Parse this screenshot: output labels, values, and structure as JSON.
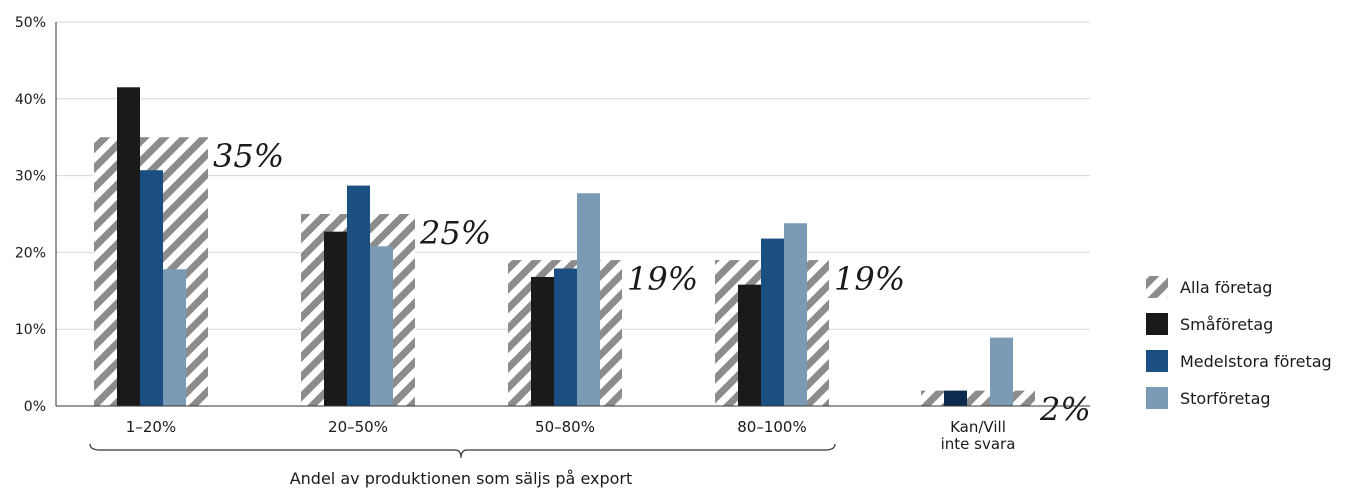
{
  "chart_data": {
    "type": "bar",
    "categories": [
      "1–20%",
      "20–50%",
      "50–80%",
      "80–100%",
      "Kan/Vill\ninte svara"
    ],
    "xlabel": "Andel av produktionen som säljs på export",
    "ylabel": "",
    "ylim": [
      0,
      50
    ],
    "yticks": [
      "0%",
      "10%",
      "20%",
      "30%",
      "40%",
      "50%"
    ],
    "grid": true,
    "legend_position": "right",
    "overall_series": {
      "name": "Alla företag",
      "values": [
        35,
        25,
        19,
        19,
        2
      ],
      "labels": [
        "35%",
        "25%",
        "19%",
        "19%",
        "2%"
      ],
      "color": "#8c8c8c"
    },
    "series": [
      {
        "name": "Småföretag",
        "values": [
          41.5,
          22.7,
          16.8,
          15.8,
          2.0
        ],
        "color": "#1a1a1a"
      },
      {
        "name": "Medelstora företag",
        "values": [
          30.7,
          28.7,
          17.9,
          21.8,
          null
        ],
        "color": "#1b4f82"
      },
      {
        "name": "Storföretag",
        "values": [
          17.8,
          20.8,
          27.7,
          23.8,
          8.9
        ],
        "color": "#7b9bb5"
      }
    ],
    "special_colors": {
      "small_last_bar": "#0d2b4e"
    },
    "bracket_covers": [
      "1–20%",
      "20–50%",
      "50–80%",
      "80–100%"
    ]
  }
}
